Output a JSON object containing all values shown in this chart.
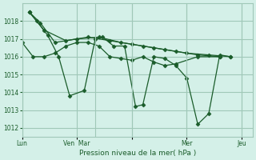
{
  "background_color": "#d4f0e8",
  "grid_color": "#a0c8b8",
  "line_color": "#1a5c2a",
  "marker_color": "#1a5c2a",
  "xlabel": "Pression niveau de la mer( hPa )",
  "ylim": [
    1011.5,
    1019.0
  ],
  "yticks": [
    1012,
    1013,
    1014,
    1015,
    1016,
    1017,
    1018
  ],
  "xtick_positions": [
    0,
    60,
    120,
    180,
    240
  ],
  "xtick_labels": [
    "Lun",
    "Ven  Mar",
    "",
    "Mer",
    "Jeu"
  ],
  "xlim": [
    0,
    252
  ],
  "series": [
    {
      "x": [
        0,
        12,
        24,
        36,
        48,
        60,
        72,
        84,
        96,
        108,
        120,
        132,
        144,
        156,
        168,
        192,
        216
      ],
      "y": [
        1016.8,
        1016.0,
        1016.0,
        1016.2,
        1016.6,
        1016.8,
        1016.8,
        1016.6,
        1016.0,
        1015.9,
        1015.8,
        1016.0,
        1015.7,
        1015.5,
        1015.6,
        1016.0,
        1016.0
      ]
    },
    {
      "x": [
        8,
        16,
        28,
        40,
        52,
        68,
        80,
        88,
        100,
        112,
        124,
        132,
        144,
        156,
        168,
        180,
        192,
        204,
        216,
        228
      ],
      "y": [
        1018.5,
        1018.0,
        1017.2,
        1016.0,
        1013.8,
        1014.1,
        1017.0,
        1017.1,
        1016.6,
        1016.6,
        1013.2,
        1013.3,
        1016.0,
        1015.9,
        1015.5,
        1014.8,
        1012.2,
        1012.8,
        1016.1,
        1016.0
      ]
    },
    {
      "x": [
        8,
        20,
        36,
        60,
        84,
        108,
        132,
        156,
        180,
        204,
        228
      ],
      "y": [
        1018.5,
        1017.9,
        1016.8,
        1017.0,
        1017.1,
        1016.8,
        1016.6,
        1016.4,
        1016.2,
        1016.1,
        1016.0
      ]
    },
    {
      "x": [
        8,
        24,
        48,
        72,
        96,
        120,
        144,
        168,
        192,
        216
      ],
      "y": [
        1018.5,
        1017.5,
        1016.9,
        1017.1,
        1016.9,
        1016.7,
        1016.5,
        1016.3,
        1016.1,
        1016.0
      ]
    }
  ],
  "vlines": [
    0,
    80,
    120,
    180,
    240
  ]
}
